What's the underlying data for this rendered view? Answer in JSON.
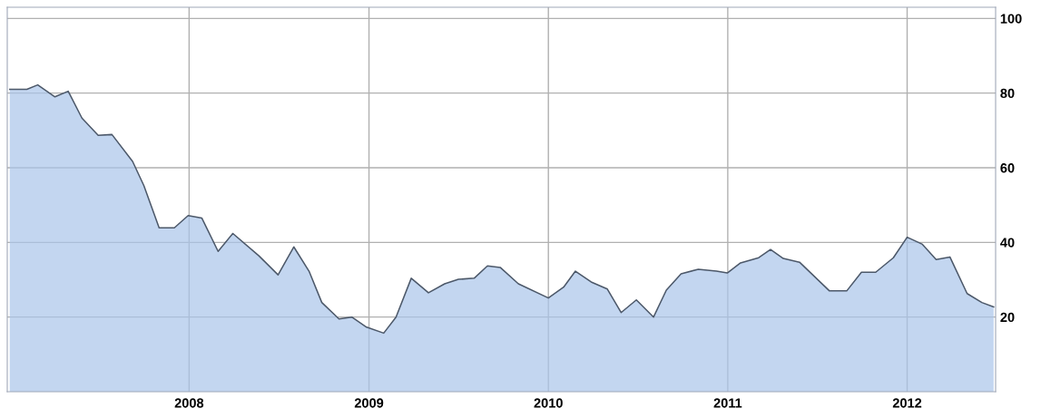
{
  "chart_data": {
    "type": "area",
    "x": [
      "2007-01-01",
      "2007-02-05",
      "2007-02-27",
      "2007-04-03",
      "2007-04-30",
      "2007-05-28",
      "2007-06-30",
      "2007-07-28",
      "2007-09-08",
      "2007-10-01",
      "2007-11-01",
      "2007-12-02",
      "2007-12-30",
      "2008-01-27",
      "2008-02-29",
      "2008-03-30",
      "2008-05-22",
      "2008-06-30",
      "2008-08-01",
      "2008-09-01",
      "2008-09-27",
      "2008-11-01",
      "2008-11-27",
      "2008-12-27",
      "2009-01-31",
      "2009-02-25",
      "2009-03-28",
      "2009-05-02",
      "2009-06-04",
      "2009-07-02",
      "2009-08-03",
      "2009-08-30",
      "2009-09-25",
      "2009-11-01",
      "2010-01-01",
      "2010-02-01",
      "2010-02-25",
      "2010-03-29",
      "2010-05-01",
      "2010-05-29",
      "2010-06-29",
      "2010-08-03",
      "2010-08-29",
      "2010-09-28",
      "2010-11-02",
      "2010-12-09",
      "2010-12-31",
      "2011-01-27",
      "2011-03-05",
      "2011-03-29",
      "2011-04-24",
      "2011-05-27",
      "2011-07-27",
      "2011-08-31",
      "2011-09-30",
      "2011-10-29",
      "2011-12-04",
      "2012-01-01",
      "2012-02-01",
      "2012-02-29",
      "2012-03-28",
      "2012-05-02",
      "2012-06-01",
      "2012-06-25"
    ],
    "series": [
      {
        "color": "#a9c4ea",
        "values": [
          81.0,
          81.0,
          82.2,
          79.0,
          80.5,
          73.3,
          68.7,
          68.9,
          61.7,
          55.2,
          43.9,
          43.9,
          47.2,
          46.5,
          37.6,
          42.4,
          36.4,
          31.3,
          38.8,
          32.3,
          23.9,
          19.5,
          20.0,
          17.3,
          15.7,
          20.0,
          30.4,
          26.5,
          28.9,
          30.1,
          30.4,
          33.7,
          33.3,
          28.9,
          25.1,
          28.0,
          32.3,
          29.4,
          27.5,
          21.2,
          24.6,
          20.0,
          27.2,
          31.6,
          32.8,
          32.3,
          31.8,
          34.5,
          35.9,
          38.1,
          35.7,
          34.7,
          27.0,
          27.0,
          32.0,
          32.0,
          35.9,
          41.4,
          39.5,
          35.4,
          36.1,
          26.3,
          23.9,
          22.7
        ]
      }
    ],
    "xlim": [
      "2006-12-27",
      "2012-06-29"
    ],
    "xticks": [
      {
        "value": "2008-01-01",
        "label": "2008"
      },
      {
        "value": "2009-01-01",
        "label": "2009"
      },
      {
        "value": "2010-01-01",
        "label": "2010"
      },
      {
        "value": "2011-01-01",
        "label": "2011"
      },
      {
        "value": "2012-01-01",
        "label": "2012"
      }
    ],
    "ylim": [
      0,
      103
    ],
    "yticks": [
      20,
      40,
      60,
      80,
      100
    ],
    "grid": true
  }
}
